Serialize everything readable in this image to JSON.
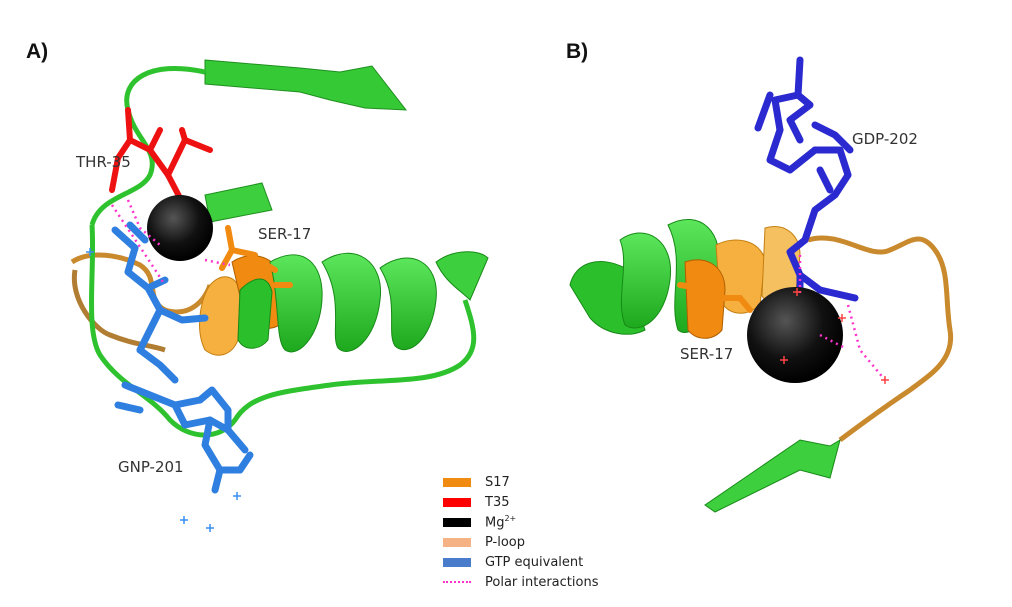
{
  "panels": {
    "a": {
      "label": "A)",
      "thr_label": "THR-35",
      "ser_label": "SER-17",
      "gnp_label": "GNP-201"
    },
    "b": {
      "label": "B)",
      "gdp_label": "GDP-202",
      "ser_label": "SER-17"
    }
  },
  "legend": [
    {
      "text": "S17",
      "color": "#f08a10"
    },
    {
      "text": "T35",
      "color": "#ff0000"
    },
    {
      "text": "Mg",
      "sup": "2+",
      "color": "#000000"
    },
    {
      "text": "P-loop",
      "color": "#f5b285"
    },
    {
      "text": "GTP equivalent",
      "color": "#4a7ccc"
    },
    {
      "text": "Polar interactions",
      "color": "#ff33cc",
      "style": "dotted"
    }
  ]
}
